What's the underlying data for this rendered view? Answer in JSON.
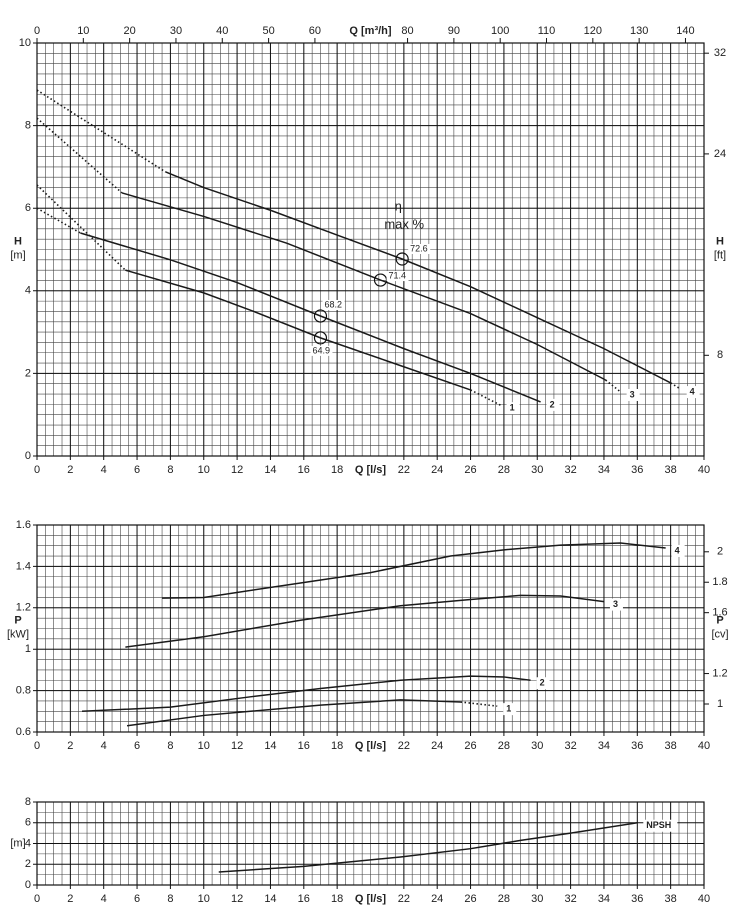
{
  "chart_data": [
    {
      "type": "line",
      "color": "#1a1a1a",
      "grid": {
        "x": 0.5,
        "y": 0.25
      },
      "xlabel": "Q [l/s]",
      "xlim": [
        0,
        40
      ],
      "xticks": [
        0,
        2,
        4,
        6,
        8,
        10,
        12,
        14,
        16,
        18,
        22,
        24,
        26,
        28,
        30,
        32,
        34,
        36,
        38,
        40
      ],
      "x2label": "Q [m³/h]",
      "x2lim": [
        0,
        144
      ],
      "x2ticks": [
        0,
        10,
        20,
        30,
        40,
        50,
        60,
        80,
        90,
        100,
        110,
        120,
        130,
        140
      ],
      "ylabel": "H",
      "yunit": "[m]",
      "ylim": [
        0,
        10
      ],
      "yticks": [
        0,
        2,
        4,
        6,
        8,
        10
      ],
      "y2label": "H",
      "y2unit": "[ft]",
      "y2lim": [
        0,
        32.81
      ],
      "y2ticks": [
        8,
        24,
        32
      ],
      "efficiency_label": "η",
      "efficiency_unit": "max %",
      "efficiency_points": [
        {
          "label": "72.6",
          "x": 21.9,
          "y": 4.77
        },
        {
          "label": "71.4",
          "x": 20.6,
          "y": 4.26
        },
        {
          "label": "68.2",
          "x": 17,
          "y": 3.39
        },
        {
          "label": "64.9",
          "x": 17,
          "y": 2.86
        }
      ],
      "series": [
        {
          "style": "dotted",
          "x": [
            0,
            7.7
          ],
          "values": [
            8.86,
            6.88
          ]
        },
        {
          "style": "solid",
          "x": [
            7.7,
            10,
            14,
            18,
            21.9,
            26,
            30,
            34,
            38
          ],
          "values": [
            6.88,
            6.5,
            5.95,
            5.35,
            4.77,
            4.1,
            3.35,
            2.6,
            1.77
          ]
        },
        {
          "name": "4",
          "style": "dotted",
          "x": [
            38,
            38.6
          ],
          "values": [
            1.77,
            1.62
          ]
        },
        {
          "style": "dotted",
          "x": [
            0,
            5.1
          ],
          "values": [
            8.18,
            6.37
          ]
        },
        {
          "style": "solid",
          "x": [
            5.1,
            10,
            15,
            20.6,
            26,
            30,
            34.1
          ],
          "values": [
            6.37,
            5.8,
            5.15,
            4.26,
            3.45,
            2.7,
            1.84
          ]
        },
        {
          "name": "3",
          "style": "dotted",
          "x": [
            34.1,
            35
          ],
          "values": [
            1.84,
            1.55
          ]
        },
        {
          "style": "dotted",
          "x": [
            0,
            2.6
          ],
          "values": [
            6.0,
            5.4
          ]
        },
        {
          "name": "2",
          "style": "solid",
          "x": [
            2.6,
            8,
            12,
            17,
            22,
            26,
            30.2
          ],
          "values": [
            5.4,
            4.75,
            4.2,
            3.39,
            2.6,
            2.0,
            1.31
          ]
        },
        {
          "style": "dotted",
          "x": [
            0,
            5.3
          ],
          "values": [
            6.56,
            4.5
          ]
        },
        {
          "style": "solid",
          "x": [
            5.3,
            10,
            13,
            17,
            21,
            26
          ],
          "values": [
            4.5,
            3.95,
            3.5,
            2.86,
            2.3,
            1.6
          ]
        },
        {
          "name": "1",
          "style": "dotted",
          "x": [
            26,
            27.8
          ],
          "values": [
            1.6,
            1.23
          ]
        }
      ]
    },
    {
      "type": "line",
      "color": "#1a1a1a",
      "grid": {
        "x": 0.5,
        "y": 0.05
      },
      "xlabel": "Q [l/s]",
      "xlim": [
        0,
        40
      ],
      "xticks": [
        0,
        2,
        4,
        6,
        8,
        10,
        12,
        14,
        16,
        18,
        22,
        24,
        26,
        28,
        30,
        32,
        34,
        36,
        38,
        40
      ],
      "ylabel": "P",
      "yunit": "[kW]",
      "ylim": [
        0.6,
        1.6
      ],
      "yticks": [
        0.6,
        0.8,
        1,
        1.2,
        1.4,
        1.6
      ],
      "y2label": "P",
      "y2unit": "[cv]",
      "y2lim": [
        0.816,
        2.176
      ],
      "y2ticks": [
        1,
        1.2,
        1.6,
        1.8,
        2
      ],
      "series": [
        {
          "name": "4",
          "style": "solid",
          "x": [
            7.5,
            10,
            15.8,
            20,
            24.8,
            28,
            31.4,
            35,
            37.7
          ],
          "values": [
            1.247,
            1.25,
            1.32,
            1.37,
            1.45,
            1.48,
            1.503,
            1.513,
            1.489
          ]
        },
        {
          "name": "3",
          "style": "solid",
          "x": [
            5.3,
            10,
            15.8,
            21.8,
            26,
            29,
            31.4,
            34
          ],
          "values": [
            1.01,
            1.06,
            1.14,
            1.21,
            1.24,
            1.26,
            1.257,
            1.23
          ]
        },
        {
          "name": "2",
          "style": "solid",
          "x": [
            2.7,
            8,
            12.8,
            17,
            21.8,
            26,
            28,
            29.6
          ],
          "values": [
            0.7,
            0.72,
            0.77,
            0.81,
            0.85,
            0.87,
            0.866,
            0.85
          ]
        },
        {
          "style": "solid",
          "x": [
            5.4,
            10,
            12.8,
            17,
            21.8,
            25.4
          ],
          "values": [
            0.63,
            0.68,
            0.7,
            0.73,
            0.755,
            0.745
          ]
        },
        {
          "name": "1",
          "style": "dotted",
          "x": [
            25.4,
            27.6
          ],
          "values": [
            0.745,
            0.725
          ]
        }
      ]
    },
    {
      "type": "line",
      "color": "#1a1a1a",
      "grid": {
        "x": 0.5,
        "y": 1
      },
      "xlabel": "Q [l/s]",
      "xlim": [
        0,
        40
      ],
      "xticks": [
        0,
        2,
        4,
        6,
        8,
        10,
        12,
        14,
        16,
        18,
        22,
        24,
        26,
        28,
        30,
        32,
        34,
        36,
        38,
        40
      ],
      "yunit": "[m]",
      "ylim": [
        0,
        8
      ],
      "yticks": [
        0,
        2,
        4,
        6,
        8
      ],
      "series": [
        {
          "name": "NPSH",
          "style": "solid",
          "x": [
            10.9,
            16,
            21.8,
            26,
            29,
            32,
            36
          ],
          "values": [
            1.25,
            1.8,
            2.7,
            3.5,
            4.3,
            5.0,
            6.0
          ]
        }
      ]
    }
  ]
}
